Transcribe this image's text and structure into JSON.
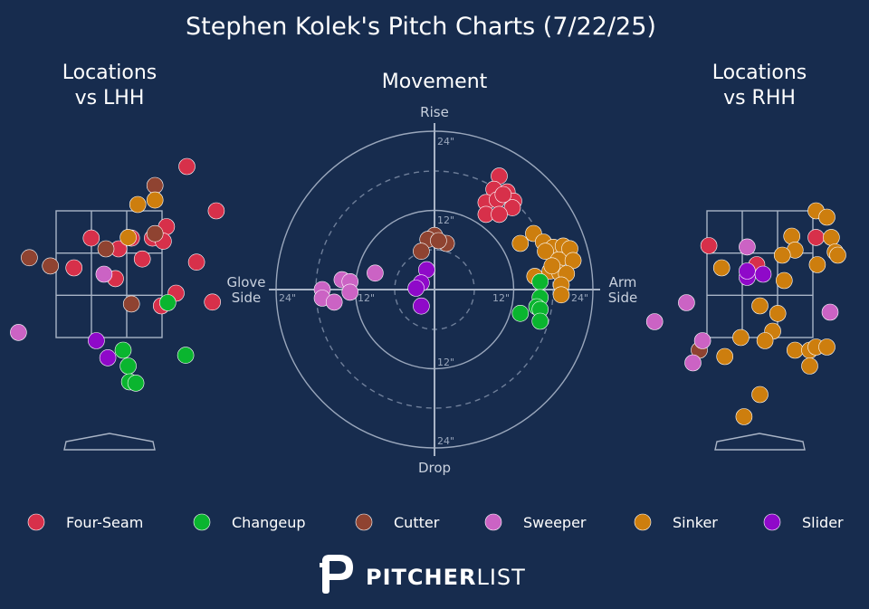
{
  "title": "Stephen Kolek's Pitch Charts (7/22/25)",
  "panels": {
    "lhh": {
      "title_line1": "Locations",
      "title_line2": "vs LHH"
    },
    "movement": {
      "title": "Movement"
    },
    "rhh": {
      "title_line1": "Locations",
      "title_line2": "vs RHH"
    }
  },
  "movement_labels": {
    "top": "Rise",
    "bottom": "Drop",
    "left_line1": "Glove",
    "left_line2": "Side",
    "right_line1": "Arm",
    "right_line2": "Side",
    "rings": {
      "top_24": "24\"",
      "top_12": "12\"",
      "bottom_12": "12\"",
      "bottom_24": "24\"",
      "left_24": "24\"",
      "left_12": "12\"",
      "right_12": "12\"",
      "right_24": "24\""
    }
  },
  "colors": {
    "background": "#172c4e",
    "Four-Seam": "#d7304a",
    "Changeup": "#0ab52f",
    "Cutter": "#8f4331",
    "Sweeper": "#cb63c4",
    "Sinker": "#cd7e0e",
    "Slider": "#8f09c9"
  },
  "legend": [
    "Four-Seam",
    "Changeup",
    "Cutter",
    "Sweeper",
    "Sinker",
    "Slider"
  ],
  "logo": {
    "bold": "PITCHER",
    "light": "LIST"
  },
  "chart_data": [
    {
      "type": "scatter",
      "title": "Locations vs LHH",
      "units": "feet (horizontal from plate center, catcher view; height above ground)",
      "xlim": [
        -2.2,
        2.2
      ],
      "ylim": [
        -0.3,
        5.0
      ],
      "strike_zone": {
        "x": [
          -0.83,
          0.83
        ],
        "y": [
          1.5,
          3.5
        ]
      },
      "points": [
        {
          "pitch": "Four-Seam",
          "x": 1.22,
          "y": 4.2
        },
        {
          "pitch": "Four-Seam",
          "x": 1.68,
          "y": 3.5
        },
        {
          "pitch": "Four-Seam",
          "x": 0.9,
          "y": 3.25
        },
        {
          "pitch": "Four-Seam",
          "x": 0.68,
          "y": 3.07
        },
        {
          "pitch": "Four-Seam",
          "x": 0.35,
          "y": 3.07
        },
        {
          "pitch": "Four-Seam",
          "x": 0.85,
          "y": 3.02
        },
        {
          "pitch": "Four-Seam",
          "x": -0.28,
          "y": 3.07
        },
        {
          "pitch": "Four-Seam",
          "x": 0.15,
          "y": 2.9
        },
        {
          "pitch": "Four-Seam",
          "x": 0.52,
          "y": 2.74
        },
        {
          "pitch": "Four-Seam",
          "x": 1.37,
          "y": 2.69
        },
        {
          "pitch": "Four-Seam",
          "x": -0.55,
          "y": 2.6
        },
        {
          "pitch": "Four-Seam",
          "x": 0.1,
          "y": 2.43
        },
        {
          "pitch": "Four-Seam",
          "x": 1.05,
          "y": 2.2
        },
        {
          "pitch": "Four-Seam",
          "x": 0.82,
          "y": 2.0
        },
        {
          "pitch": "Four-Seam",
          "x": 1.62,
          "y": 2.06
        },
        {
          "pitch": "Cutter",
          "x": 0.72,
          "y": 3.9
        },
        {
          "pitch": "Cutter",
          "x": 0.72,
          "y": 3.14
        },
        {
          "pitch": "Cutter",
          "x": -0.05,
          "y": 2.9
        },
        {
          "pitch": "Cutter",
          "x": -1.25,
          "y": 2.76
        },
        {
          "pitch": "Cutter",
          "x": -0.92,
          "y": 2.63
        },
        {
          "pitch": "Cutter",
          "x": 0.35,
          "y": 2.03
        },
        {
          "pitch": "Sinker",
          "x": 0.72,
          "y": 3.67
        },
        {
          "pitch": "Sinker",
          "x": 0.45,
          "y": 3.6
        },
        {
          "pitch": "Sinker",
          "x": 0.3,
          "y": 3.08
        },
        {
          "pitch": "Sweeper",
          "x": -0.08,
          "y": 2.5
        },
        {
          "pitch": "Sweeper",
          "x": -1.42,
          "y": 1.58
        },
        {
          "pitch": "Changeup",
          "x": 0.92,
          "y": 2.05
        },
        {
          "pitch": "Changeup",
          "x": 0.22,
          "y": 1.3
        },
        {
          "pitch": "Changeup",
          "x": 0.3,
          "y": 1.05
        },
        {
          "pitch": "Changeup",
          "x": 0.32,
          "y": 0.8
        },
        {
          "pitch": "Changeup",
          "x": 0.42,
          "y": 0.78
        },
        {
          "pitch": "Changeup",
          "x": 1.2,
          "y": 1.22
        },
        {
          "pitch": "Slider",
          "x": -0.2,
          "y": 1.45
        },
        {
          "pitch": "Slider",
          "x": -0.02,
          "y": 1.18
        }
      ]
    },
    {
      "type": "scatter",
      "title": "Movement",
      "units": "inches (horizontal break: glove side negative, arm side positive; induced vertical break)",
      "xlim": [
        -24,
        24
      ],
      "ylim": [
        -24,
        24
      ],
      "rings": [
        6,
        12,
        18,
        24
      ],
      "points": [
        {
          "pitch": "Four-Seam",
          "x": 9.8,
          "y": 17.2
        },
        {
          "pitch": "Four-Seam",
          "x": 9.0,
          "y": 15.2
        },
        {
          "pitch": "Four-Seam",
          "x": 11.0,
          "y": 14.8
        },
        {
          "pitch": "Four-Seam",
          "x": 12.0,
          "y": 13.4
        },
        {
          "pitch": "Four-Seam",
          "x": 7.8,
          "y": 13.2
        },
        {
          "pitch": "Four-Seam",
          "x": 9.5,
          "y": 13.6
        },
        {
          "pitch": "Four-Seam",
          "x": 11.8,
          "y": 12.4
        },
        {
          "pitch": "Four-Seam",
          "x": 7.8,
          "y": 11.4
        },
        {
          "pitch": "Four-Seam",
          "x": 9.8,
          "y": 11.4
        },
        {
          "pitch": "Four-Seam",
          "x": 10.4,
          "y": 14.4
        },
        {
          "pitch": "Cutter",
          "x": 0.0,
          "y": 8.2
        },
        {
          "pitch": "Cutter",
          "x": -1.0,
          "y": 7.6
        },
        {
          "pitch": "Cutter",
          "x": 1.8,
          "y": 7.0
        },
        {
          "pitch": "Cutter",
          "x": -2.0,
          "y": 5.8
        },
        {
          "pitch": "Cutter",
          "x": 0.6,
          "y": 7.4
        },
        {
          "pitch": "Sinker",
          "x": 15.0,
          "y": 8.5
        },
        {
          "pitch": "Sinker",
          "x": 13.0,
          "y": 7.0
        },
        {
          "pitch": "Sinker",
          "x": 16.5,
          "y": 7.2
        },
        {
          "pitch": "Sinker",
          "x": 18.0,
          "y": 6.4
        },
        {
          "pitch": "Sinker",
          "x": 19.5,
          "y": 6.6
        },
        {
          "pitch": "Sinker",
          "x": 16.8,
          "y": 5.8
        },
        {
          "pitch": "Sinker",
          "x": 20.5,
          "y": 6.2
        },
        {
          "pitch": "Sinker",
          "x": 18.8,
          "y": 4.5
        },
        {
          "pitch": "Sinker",
          "x": 21.0,
          "y": 4.4
        },
        {
          "pitch": "Sinker",
          "x": 15.2,
          "y": 2.0
        },
        {
          "pitch": "Sinker",
          "x": 17.5,
          "y": 2.8
        },
        {
          "pitch": "Sinker",
          "x": 19.0,
          "y": 2.5
        },
        {
          "pitch": "Sinker",
          "x": 20.0,
          "y": 2.4
        },
        {
          "pitch": "Sinker",
          "x": 17.8,
          "y": 3.6
        },
        {
          "pitch": "Sinker",
          "x": 19.2,
          "y": 0.7
        },
        {
          "pitch": "Sinker",
          "x": 19.2,
          "y": -0.8
        },
        {
          "pitch": "Changeup",
          "x": 16.0,
          "y": 1.2
        },
        {
          "pitch": "Changeup",
          "x": 16.0,
          "y": -1.2
        },
        {
          "pitch": "Changeup",
          "x": 15.5,
          "y": -2.6
        },
        {
          "pitch": "Changeup",
          "x": 13.0,
          "y": -3.6
        },
        {
          "pitch": "Changeup",
          "x": 16.0,
          "y": -3.0
        },
        {
          "pitch": "Changeup",
          "x": 16.0,
          "y": -4.8
        },
        {
          "pitch": "Sweeper",
          "x": -9.0,
          "y": 2.5
        },
        {
          "pitch": "Sweeper",
          "x": -14.0,
          "y": 1.5
        },
        {
          "pitch": "Sweeper",
          "x": -12.8,
          "y": 1.2
        },
        {
          "pitch": "Sweeper",
          "x": -17.0,
          "y": 0.0
        },
        {
          "pitch": "Sweeper",
          "x": -12.8,
          "y": -0.4
        },
        {
          "pitch": "Sweeper",
          "x": -17.0,
          "y": -1.3
        },
        {
          "pitch": "Sweeper",
          "x": -15.2,
          "y": -1.9
        },
        {
          "pitch": "Slider",
          "x": -1.2,
          "y": 3.0
        },
        {
          "pitch": "Slider",
          "x": -2.0,
          "y": 1.0
        },
        {
          "pitch": "Slider",
          "x": -2.8,
          "y": 0.2
        },
        {
          "pitch": "Slider",
          "x": -2.0,
          "y": -2.5
        }
      ]
    },
    {
      "type": "scatter",
      "title": "Locations vs RHH",
      "units": "feet (horizontal from plate center, catcher view; height above ground)",
      "xlim": [
        -2.2,
        2.2
      ],
      "ylim": [
        -0.3,
        5.0
      ],
      "strike_zone": {
        "x": [
          -0.83,
          0.83
        ],
        "y": [
          1.5,
          3.5
        ]
      },
      "points": [
        {
          "pitch": "Four-Seam",
          "x": -0.8,
          "y": 2.95
        },
        {
          "pitch": "Four-Seam",
          "x": -0.05,
          "y": 2.65
        },
        {
          "pitch": "Four-Seam",
          "x": 0.88,
          "y": 3.08
        },
        {
          "pitch": "Cutter",
          "x": -0.95,
          "y": 1.3
        },
        {
          "pitch": "Sweeper",
          "x": -0.2,
          "y": 2.93
        },
        {
          "pitch": "Sweeper",
          "x": -1.15,
          "y": 2.05
        },
        {
          "pitch": "Sweeper",
          "x": -1.65,
          "y": 1.75
        },
        {
          "pitch": "Sweeper",
          "x": -0.9,
          "y": 1.45
        },
        {
          "pitch": "Sweeper",
          "x": -1.05,
          "y": 1.1
        },
        {
          "pitch": "Sweeper",
          "x": 1.1,
          "y": 1.9
        },
        {
          "pitch": "Slider",
          "x": -0.2,
          "y": 2.45
        },
        {
          "pitch": "Slider",
          "x": -0.2,
          "y": 2.55
        },
        {
          "pitch": "Slider",
          "x": 0.05,
          "y": 2.5
        },
        {
          "pitch": "Sinker",
          "x": 0.88,
          "y": 3.5
        },
        {
          "pitch": "Sinker",
          "x": 1.05,
          "y": 3.4
        },
        {
          "pitch": "Sinker",
          "x": 0.5,
          "y": 3.1
        },
        {
          "pitch": "Sinker",
          "x": 1.12,
          "y": 3.08
        },
        {
          "pitch": "Sinker",
          "x": 1.18,
          "y": 2.85
        },
        {
          "pitch": "Sinker",
          "x": 0.55,
          "y": 2.88
        },
        {
          "pitch": "Sinker",
          "x": 0.35,
          "y": 2.8
        },
        {
          "pitch": "Sinker",
          "x": 1.22,
          "y": 2.8
        },
        {
          "pitch": "Sinker",
          "x": 0.9,
          "y": 2.65
        },
        {
          "pitch": "Sinker",
          "x": -0.6,
          "y": 2.6
        },
        {
          "pitch": "Sinker",
          "x": 0.38,
          "y": 2.4
        },
        {
          "pitch": "Sinker",
          "x": 2.1,
          "y": 2.4
        },
        {
          "pitch": "Sinker",
          "x": 0.0,
          "y": 2.0
        },
        {
          "pitch": "Sinker",
          "x": 0.28,
          "y": 1.88
        },
        {
          "pitch": "Sinker",
          "x": 0.2,
          "y": 1.6
        },
        {
          "pitch": "Sinker",
          "x": -0.3,
          "y": 1.5
        },
        {
          "pitch": "Sinker",
          "x": 0.08,
          "y": 1.45
        },
        {
          "pitch": "Sinker",
          "x": 0.55,
          "y": 1.3
        },
        {
          "pitch": "Sinker",
          "x": 0.78,
          "y": 1.3
        },
        {
          "pitch": "Sinker",
          "x": 0.88,
          "y": 1.35
        },
        {
          "pitch": "Sinker",
          "x": 1.05,
          "y": 1.35
        },
        {
          "pitch": "Sinker",
          "x": 0.78,
          "y": 1.05
        },
        {
          "pitch": "Sinker",
          "x": -0.55,
          "y": 1.2
        },
        {
          "pitch": "Sinker",
          "x": 0.0,
          "y": 0.6
        },
        {
          "pitch": "Sinker",
          "x": -0.25,
          "y": 0.25
        }
      ]
    }
  ]
}
